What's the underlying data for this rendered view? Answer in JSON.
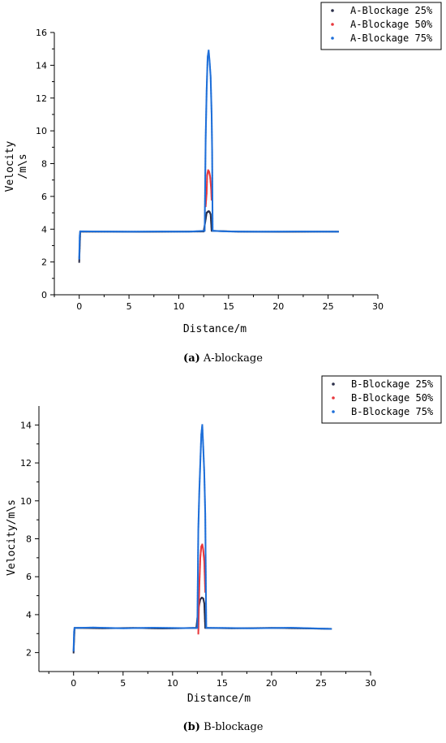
{
  "chart_data": [
    {
      "type": "scatter",
      "id": "a",
      "caption_tag": "(a)",
      "caption_text": "A-blockage",
      "xlabel": "Distance/m",
      "ylabel": "Velocity /m\\s",
      "ylabel_lines": [
        "Velocity",
        "/m\\s"
      ],
      "xlim": [
        -2.5,
        30
      ],
      "ylim": [
        0,
        16
      ],
      "xticks": [
        0,
        5,
        10,
        15,
        20,
        25,
        30
      ],
      "yticks": [
        0,
        2,
        4,
        6,
        8,
        10,
        12,
        14,
        16
      ],
      "legend_position": "top-right",
      "series": [
        {
          "name": "A-Blockage 25%",
          "color": "#2b2f4a",
          "points": [
            [
              0,
              2.0
            ],
            [
              0.1,
              3.85
            ],
            [
              3,
              3.85
            ],
            [
              6,
              3.84
            ],
            [
              9,
              3.85
            ],
            [
              12.5,
              3.86
            ],
            [
              12.7,
              4.6
            ],
            [
              12.8,
              5.0
            ],
            [
              12.9,
              5.05
            ],
            [
              13.0,
              5.1
            ],
            [
              13.1,
              5.05
            ],
            [
              13.2,
              4.9
            ],
            [
              13.3,
              3.9
            ],
            [
              16,
              3.85
            ],
            [
              20,
              3.84
            ],
            [
              24,
              3.85
            ],
            [
              26,
              3.85
            ]
          ]
        },
        {
          "name": "A-Blockage 50%",
          "color": "#e8383d",
          "points": [
            [
              12.7,
              5.4
            ],
            [
              12.8,
              6.2
            ],
            [
              12.85,
              7.3
            ],
            [
              12.95,
              7.6
            ],
            [
              13.05,
              7.5
            ],
            [
              13.15,
              7.2
            ],
            [
              13.25,
              6.5
            ],
            [
              13.3,
              5.8
            ]
          ]
        },
        {
          "name": "A-Blockage 75%",
          "color": "#1e6fd9",
          "points": [
            [
              0,
              2.2
            ],
            [
              0.05,
              3.6
            ],
            [
              0.1,
              3.87
            ],
            [
              2,
              3.86
            ],
            [
              5,
              3.85
            ],
            [
              8,
              3.86
            ],
            [
              11,
              3.85
            ],
            [
              12.6,
              3.9
            ],
            [
              12.7,
              9.5
            ],
            [
              12.8,
              12.5
            ],
            [
              12.9,
              14.5
            ],
            [
              13.0,
              14.9
            ],
            [
              13.1,
              14.2
            ],
            [
              13.2,
              13.3
            ],
            [
              13.3,
              11.0
            ],
            [
              13.35,
              8.8
            ],
            [
              13.4,
              3.9
            ],
            [
              15,
              3.86
            ],
            [
              18,
              3.85
            ],
            [
              22,
              3.86
            ],
            [
              26,
              3.85
            ]
          ]
        }
      ]
    },
    {
      "type": "scatter",
      "id": "b",
      "caption_tag": "(b)",
      "caption_text": "B-blockage",
      "xlabel": "Distance/m",
      "ylabel": "Velocity/m\\s",
      "ylabel_lines": [
        "Velocity/m\\s"
      ],
      "xlim": [
        -3.5,
        30
      ],
      "ylim": [
        1,
        15
      ],
      "xticks": [
        0,
        5,
        10,
        15,
        20,
        25,
        30
      ],
      "yticks": [
        2,
        4,
        6,
        8,
        10,
        12,
        14
      ],
      "legend_position": "top-right",
      "series": [
        {
          "name": "B-Blockage 25%",
          "color": "#2b2f4a",
          "points": [
            [
              0,
              2.0
            ],
            [
              0.1,
              3.3
            ],
            [
              3,
              3.28
            ],
            [
              6,
              3.3
            ],
            [
              9,
              3.27
            ],
            [
              12.4,
              3.3
            ],
            [
              12.6,
              4.3
            ],
            [
              12.8,
              4.8
            ],
            [
              12.95,
              4.9
            ],
            [
              13.1,
              4.85
            ],
            [
              13.2,
              4.6
            ],
            [
              13.3,
              3.3
            ],
            [
              16,
              3.28
            ],
            [
              20,
              3.3
            ],
            [
              24,
              3.27
            ],
            [
              26,
              3.25
            ]
          ]
        },
        {
          "name": "B-Blockage 50%",
          "color": "#e8383d",
          "points": [
            [
              12.6,
              3.0
            ],
            [
              12.7,
              5.5
            ],
            [
              12.8,
              7.0
            ],
            [
              12.9,
              7.6
            ],
            [
              13.0,
              7.7
            ],
            [
              13.1,
              7.4
            ],
            [
              13.2,
              6.8
            ],
            [
              13.3,
              5.2
            ]
          ]
        },
        {
          "name": "B-Blockage 75%",
          "color": "#1e6fd9",
          "points": [
            [
              0,
              2.1
            ],
            [
              0.05,
              3.1
            ],
            [
              0.1,
              3.3
            ],
            [
              2,
              3.32
            ],
            [
              5,
              3.28
            ],
            [
              8,
              3.31
            ],
            [
              11,
              3.29
            ],
            [
              12.5,
              3.3
            ],
            [
              12.6,
              8.5
            ],
            [
              12.7,
              10.5
            ],
            [
              12.8,
              12.0
            ],
            [
              12.9,
              13.5
            ],
            [
              13.0,
              14.0
            ],
            [
              13.1,
              12.8
            ],
            [
              13.2,
              11.5
            ],
            [
              13.3,
              9.3
            ],
            [
              13.4,
              3.3
            ],
            [
              15,
              3.3
            ],
            [
              18,
              3.28
            ],
            [
              22,
              3.31
            ],
            [
              26,
              3.25
            ]
          ]
        }
      ]
    }
  ]
}
